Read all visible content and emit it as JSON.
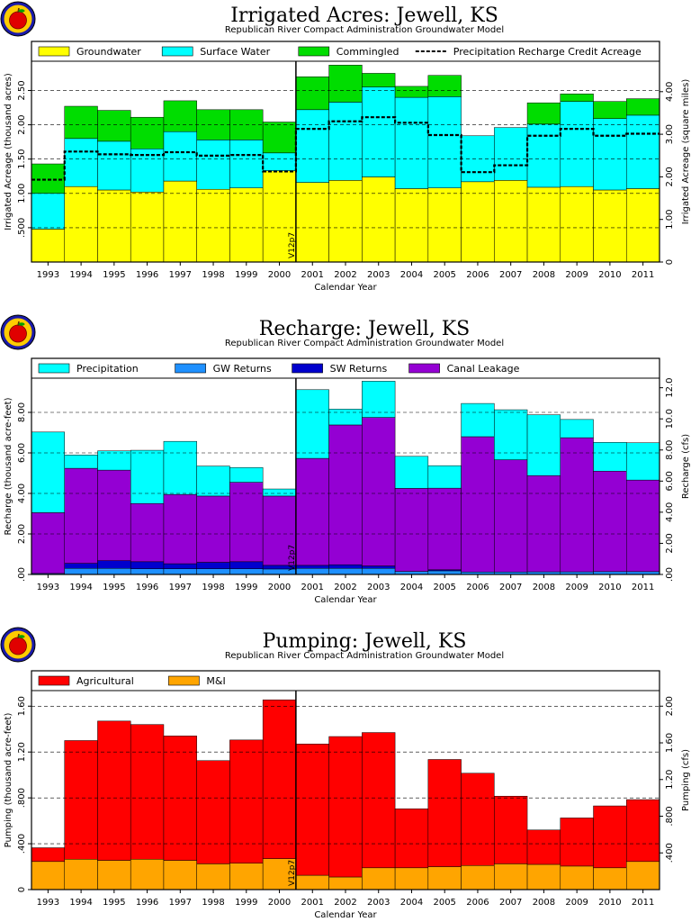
{
  "chart_data": [
    {
      "type": "bar",
      "title": "Irrigated Acres: Jewell, KS",
      "subtitle": "Republican River Compact Administration Groundwater Model",
      "xlabel": "Calendar Year",
      "ylabel": "Irrigated Acreage (thousand acres)",
      "y2label": "Irrigated Acreage (square miles)",
      "categories": [
        "1993",
        "1994",
        "1995",
        "1996",
        "1997",
        "1998",
        "1999",
        "2000",
        "2001",
        "2002",
        "2003",
        "2004",
        "2005",
        "2006",
        "2007",
        "2008",
        "2009",
        "2010",
        "2011"
      ],
      "ylim": [
        0,
        2.9
      ],
      "yticks": [
        ".500",
        "1.00",
        "1.50",
        "2.00",
        "2.50"
      ],
      "y2ticks": [
        "0",
        "1.00",
        "2.00",
        "3.00",
        "4.00"
      ],
      "stacked": true,
      "series": [
        {
          "name": "Groundwater",
          "color": "#ffff00",
          "values": [
            0.48,
            1.1,
            1.05,
            1.02,
            1.18,
            1.06,
            1.08,
            1.33,
            1.16,
            1.19,
            1.24,
            1.07,
            1.08,
            1.17,
            1.19,
            1.09,
            1.1,
            1.05,
            1.07
          ]
        },
        {
          "name": "Surface Water",
          "color": "#00ffff",
          "values": [
            0.52,
            0.7,
            0.71,
            0.63,
            0.72,
            0.72,
            0.7,
            0.26,
            1.06,
            1.14,
            1.31,
            1.33,
            1.33,
            0.67,
            0.77,
            0.92,
            1.24,
            1.04,
            1.07
          ]
        },
        {
          "name": "Commingled",
          "color": "#00dd00",
          "values": [
            0.43,
            0.47,
            0.45,
            0.46,
            0.45,
            0.44,
            0.44,
            0.45,
            0.48,
            0.54,
            0.2,
            0.16,
            0.31,
            0.0,
            0.0,
            0.31,
            0.11,
            0.25,
            0.24
          ]
        }
      ],
      "line_series": {
        "name": "Precipitation Recharge Credit Acreage",
        "values": [
          1.2,
          1.61,
          1.57,
          1.56,
          1.6,
          1.55,
          1.56,
          1.32,
          1.94,
          2.05,
          2.11,
          2.03,
          1.85,
          1.31,
          1.41,
          1.84,
          1.94,
          1.84,
          1.87
        ]
      },
      "marker": {
        "label": "V12p7",
        "after_index": 7
      }
    },
    {
      "type": "bar",
      "title": "Recharge: Jewell, KS",
      "subtitle": "Republican River Compact Administration Groundwater Model",
      "xlabel": "Calendar Year",
      "ylabel": "Recharge (thousand acre-feet)",
      "y2label": "Recharge (cfs)",
      "categories": [
        "1993",
        "1994",
        "1995",
        "1996",
        "1997",
        "1998",
        "1999",
        "2000",
        "2001",
        "2002",
        "2003",
        "2004",
        "2005",
        "2006",
        "2007",
        "2008",
        "2009",
        "2010",
        "2011"
      ],
      "ylim": [
        0,
        9.6
      ],
      "yticks": [
        ".00",
        "2.00",
        "4.00",
        "6.00",
        "8.00"
      ],
      "y2ticks": [
        ".00",
        "2.00",
        "4.00",
        "6.00",
        "8.00",
        "10.0",
        "12.0"
      ],
      "stacked": true,
      "series": [
        {
          "name": "Precipitation",
          "color": "#00ffff",
          "values": [
            3.98,
            0.66,
            0.95,
            2.63,
            2.62,
            1.48,
            0.73,
            0.35,
            3.39,
            0.78,
            1.79,
            1.58,
            1.11,
            1.64,
            2.47,
            3.0,
            0.9,
            1.42,
            1.84
          ]
        },
        {
          "name": "GW Returns",
          "color": "#1e90ff",
          "values": [
            0.05,
            0.3,
            0.3,
            0.28,
            0.28,
            0.28,
            0.28,
            0.27,
            0.3,
            0.3,
            0.3,
            0.15,
            0.18,
            0.12,
            0.12,
            0.13,
            0.13,
            0.14,
            0.14
          ]
        },
        {
          "name": "SW Returns",
          "color": "#0000cd",
          "values": [
            0.0,
            0.25,
            0.38,
            0.35,
            0.25,
            0.32,
            0.35,
            0.18,
            0.15,
            0.18,
            0.12,
            0.0,
            0.05,
            0.0,
            0.0,
            0.0,
            0.0,
            0.0,
            0.0
          ]
        },
        {
          "name": "Canal Leakage",
          "color": "#9400d3",
          "values": [
            3.0,
            4.69,
            4.47,
            2.87,
            3.42,
            3.27,
            3.92,
            3.42,
            5.28,
            6.9,
            7.33,
            4.1,
            4.03,
            6.68,
            5.54,
            4.75,
            6.62,
            4.96,
            4.52
          ]
        }
      ],
      "marker": {
        "label": "V12p7",
        "after_index": 7
      }
    },
    {
      "type": "bar",
      "title": "Pumping: Jewell, KS",
      "subtitle": "Republican River Compact Administration Groundwater Model",
      "xlabel": "Calendar Year",
      "ylabel": "Pumping (thousand acre-feet)",
      "y2label": "Pumping (cfs)",
      "categories": [
        "1993",
        "1994",
        "1995",
        "1996",
        "1997",
        "1998",
        "1999",
        "2000",
        "2001",
        "2002",
        "2003",
        "2004",
        "2005",
        "2006",
        "2007",
        "2008",
        "2009",
        "2010",
        "2011"
      ],
      "ylim": [
        0,
        1.72
      ],
      "yticks": [
        "0",
        ".400",
        ".800",
        "1.20",
        "1.60"
      ],
      "y2ticks": [
        ".400",
        ".800",
        "1.20",
        "1.60",
        "2.00"
      ],
      "stacked": true,
      "series": [
        {
          "name": "M&I",
          "color": "#ffa500",
          "values": [
            0.245,
            0.265,
            0.255,
            0.265,
            0.255,
            0.225,
            0.23,
            0.27,
            0.125,
            0.11,
            0.19,
            0.19,
            0.2,
            0.21,
            0.225,
            0.22,
            0.205,
            0.19,
            0.245
          ]
        },
        {
          "name": "Agricultural",
          "color": "#ff0000",
          "values": [
            0.12,
            1.035,
            1.215,
            1.175,
            1.085,
            0.9,
            1.075,
            1.385,
            1.145,
            1.225,
            1.18,
            0.515,
            0.935,
            0.805,
            0.59,
            0.3,
            0.42,
            0.54,
            0.54
          ]
        }
      ],
      "marker": {
        "label": "V12p7",
        "after_index": 7
      }
    }
  ]
}
